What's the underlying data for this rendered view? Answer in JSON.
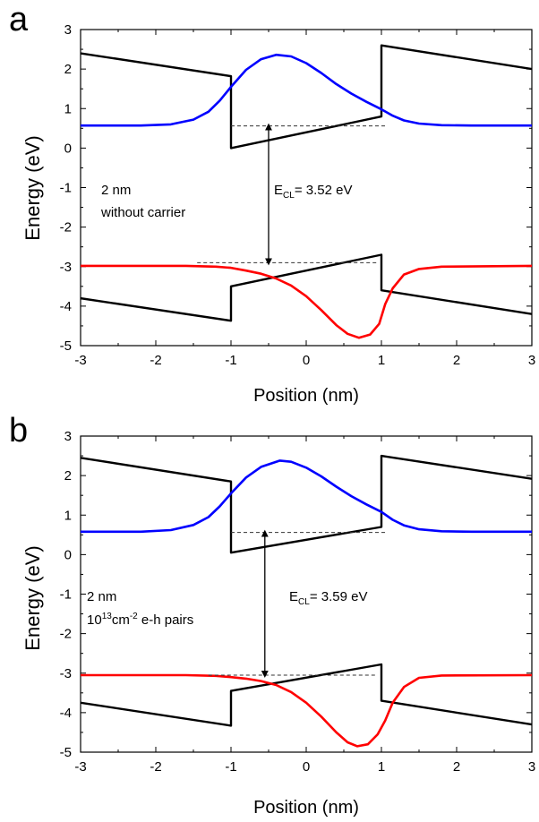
{
  "chart_data": [
    {
      "panel_label": "a",
      "type": "line",
      "xlabel": "Position (nm)",
      "ylabel": "Energy (eV)",
      "xlim": [
        -3,
        3
      ],
      "ylim": [
        -5,
        3
      ],
      "xticks": [
        "-3",
        "-2",
        "-1",
        "0",
        "1",
        "2",
        "3"
      ],
      "yticks": [
        "3",
        "2",
        "1",
        "0",
        "-1",
        "-2",
        "-3",
        "-4",
        "-5"
      ],
      "annotation_lines": [
        "2 nm",
        "without carrier"
      ],
      "ecl_label": {
        "main": "E",
        "sub": "CL",
        "rest": "= 3.52 eV"
      },
      "arrow": {
        "x": -0.5,
        "y1": 0.56,
        "y2": -2.9
      },
      "dashed_levels": [
        {
          "x1": -1.0,
          "x2": 1.05,
          "y": 0.56
        },
        {
          "x1": -1.45,
          "x2": 0.95,
          "y": -2.9
        }
      ],
      "series": [
        {
          "color": "#000000",
          "role": "conduction-band",
          "points": [
            [
              -3,
              2.4
            ],
            [
              -1,
              1.82
            ],
            [
              -1,
              0.0
            ],
            [
              1,
              0.8
            ],
            [
              1,
              2.6
            ],
            [
              3,
              2.0
            ]
          ]
        },
        {
          "color": "#000000",
          "role": "valence-band",
          "points": [
            [
              -3,
              -3.8
            ],
            [
              -1,
              -4.37
            ],
            [
              -1,
              -3.5
            ],
            [
              1,
              -2.7
            ],
            [
              1,
              -3.6
            ],
            [
              3,
              -4.2
            ]
          ]
        },
        {
          "color": "#0000ff",
          "role": "electron-wavefunction",
          "points": [
            [
              -3,
              0.57
            ],
            [
              -2.2,
              0.57
            ],
            [
              -1.8,
              0.6
            ],
            [
              -1.5,
              0.72
            ],
            [
              -1.3,
              0.92
            ],
            [
              -1.15,
              1.2
            ],
            [
              -1.0,
              1.55
            ],
            [
              -0.8,
              1.98
            ],
            [
              -0.6,
              2.25
            ],
            [
              -0.4,
              2.36
            ],
            [
              -0.2,
              2.32
            ],
            [
              0.0,
              2.15
            ],
            [
              0.2,
              1.9
            ],
            [
              0.4,
              1.62
            ],
            [
              0.6,
              1.38
            ],
            [
              0.8,
              1.17
            ],
            [
              1.0,
              0.98
            ],
            [
              1.15,
              0.82
            ],
            [
              1.3,
              0.7
            ],
            [
              1.5,
              0.62
            ],
            [
              1.8,
              0.58
            ],
            [
              2.2,
              0.57
            ],
            [
              3,
              0.57
            ]
          ]
        },
        {
          "color": "#ff0000",
          "role": "hole-wavefunction",
          "points": [
            [
              -3,
              -2.98
            ],
            [
              -1.6,
              -2.98
            ],
            [
              -1.2,
              -3.0
            ],
            [
              -1.0,
              -3.03
            ],
            [
              -0.8,
              -3.1
            ],
            [
              -0.6,
              -3.18
            ],
            [
              -0.4,
              -3.3
            ],
            [
              -0.2,
              -3.48
            ],
            [
              0.0,
              -3.75
            ],
            [
              0.2,
              -4.1
            ],
            [
              0.4,
              -4.48
            ],
            [
              0.55,
              -4.7
            ],
            [
              0.7,
              -4.8
            ],
            [
              0.85,
              -4.72
            ],
            [
              0.97,
              -4.45
            ],
            [
              1.05,
              -3.95
            ],
            [
              1.15,
              -3.55
            ],
            [
              1.3,
              -3.2
            ],
            [
              1.5,
              -3.06
            ],
            [
              1.8,
              -3.0
            ],
            [
              3,
              -2.98
            ]
          ]
        }
      ]
    },
    {
      "panel_label": "b",
      "type": "line",
      "xlabel": "Position (nm)",
      "ylabel": "Energy (eV)",
      "xlim": [
        -3,
        3
      ],
      "ylim": [
        -5,
        3
      ],
      "xticks": [
        "-3",
        "-2",
        "-1",
        "0",
        "1",
        "2",
        "3"
      ],
      "yticks": [
        "3",
        "2",
        "1",
        "0",
        "-1",
        "-2",
        "-3",
        "-4",
        "-5"
      ],
      "annotation_lines": [
        "2 nm"
      ],
      "annotation_density": {
        "base": "10",
        "exp": "13",
        "unit": "cm",
        "unit_exp": "-2",
        "rest": " e-h pairs"
      },
      "ecl_label": {
        "main": "E",
        "sub": "CL",
        "rest": "= 3.59 eV"
      },
      "arrow": {
        "x": -0.55,
        "y1": 0.56,
        "y2": -3.05
      },
      "dashed_levels": [
        {
          "x1": -1.0,
          "x2": 1.05,
          "y": 0.56
        },
        {
          "x1": -1.3,
          "x2": 0.95,
          "y": -3.05
        }
      ],
      "series": [
        {
          "color": "#000000",
          "role": "conduction-band",
          "points": [
            [
              -3,
              2.45
            ],
            [
              -1,
              1.85
            ],
            [
              -1,
              0.05
            ],
            [
              1,
              0.7
            ],
            [
              1,
              2.5
            ],
            [
              3,
              1.92
            ]
          ]
        },
        {
          "color": "#000000",
          "role": "valence-band",
          "points": [
            [
              -3,
              -3.75
            ],
            [
              -1,
              -4.33
            ],
            [
              -1,
              -3.45
            ],
            [
              1,
              -2.78
            ],
            [
              1,
              -3.7
            ],
            [
              3,
              -4.3
            ]
          ]
        },
        {
          "color": "#0000ff",
          "role": "electron-wavefunction",
          "points": [
            [
              -3,
              0.58
            ],
            [
              -2.2,
              0.58
            ],
            [
              -1.8,
              0.62
            ],
            [
              -1.5,
              0.75
            ],
            [
              -1.3,
              0.95
            ],
            [
              -1.15,
              1.22
            ],
            [
              -1.0,
              1.55
            ],
            [
              -0.8,
              1.95
            ],
            [
              -0.6,
              2.22
            ],
            [
              -0.35,
              2.38
            ],
            [
              -0.2,
              2.35
            ],
            [
              0.0,
              2.2
            ],
            [
              0.2,
              1.98
            ],
            [
              0.4,
              1.72
            ],
            [
              0.6,
              1.48
            ],
            [
              0.8,
              1.27
            ],
            [
              1.0,
              1.08
            ],
            [
              1.15,
              0.88
            ],
            [
              1.3,
              0.74
            ],
            [
              1.5,
              0.64
            ],
            [
              1.8,
              0.59
            ],
            [
              2.2,
              0.58
            ],
            [
              3,
              0.58
            ]
          ]
        },
        {
          "color": "#ff0000",
          "role": "hole-wavefunction",
          "points": [
            [
              -3,
              -3.05
            ],
            [
              -1.6,
              -3.05
            ],
            [
              -1.2,
              -3.07
            ],
            [
              -1.0,
              -3.1
            ],
            [
              -0.8,
              -3.14
            ],
            [
              -0.6,
              -3.2
            ],
            [
              -0.4,
              -3.3
            ],
            [
              -0.2,
              -3.48
            ],
            [
              0.0,
              -3.75
            ],
            [
              0.2,
              -4.1
            ],
            [
              0.4,
              -4.5
            ],
            [
              0.55,
              -4.75
            ],
            [
              0.68,
              -4.85
            ],
            [
              0.82,
              -4.8
            ],
            [
              0.95,
              -4.55
            ],
            [
              1.05,
              -4.2
            ],
            [
              1.15,
              -3.75
            ],
            [
              1.3,
              -3.35
            ],
            [
              1.5,
              -3.12
            ],
            [
              1.8,
              -3.06
            ],
            [
              3,
              -3.05
            ]
          ]
        }
      ]
    }
  ]
}
